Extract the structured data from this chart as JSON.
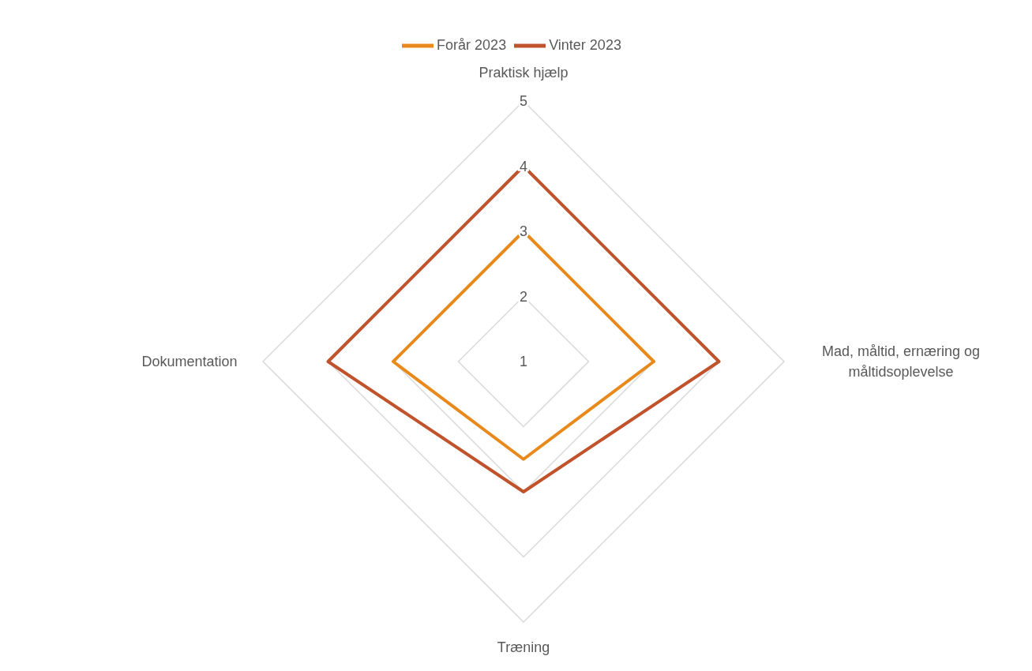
{
  "chart_data": {
    "type": "radar",
    "categories": [
      "Praktisk hjælp",
      "Mad, måltid, ernæring og måltidsoplevelse",
      "Træning",
      "Dokumentation"
    ],
    "series": [
      {
        "name": "Forår 2023",
        "color": "#e8891c",
        "values": [
          3,
          3,
          2.5,
          3
        ]
      },
      {
        "name": "Vinter 2023",
        "color": "#c0532b",
        "values": [
          4,
          4,
          3,
          4
        ]
      }
    ],
    "ylim": [
      1,
      5
    ],
    "yticks": [
      1,
      2,
      3,
      4,
      5
    ],
    "grid": true,
    "legend": "top",
    "marker": "none",
    "line_style": "solid"
  }
}
